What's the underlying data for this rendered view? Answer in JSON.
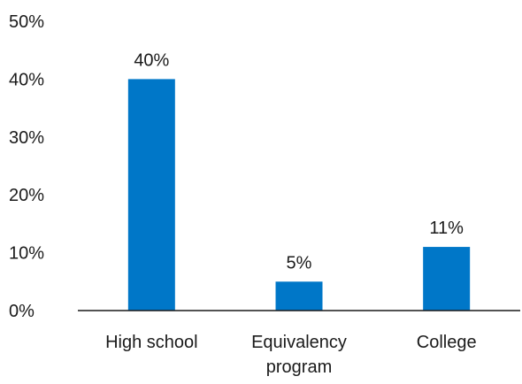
{
  "chart_data": {
    "type": "bar",
    "categories": [
      "High school",
      "Equivalency program",
      "College"
    ],
    "category_lines": [
      [
        "High school"
      ],
      [
        "Equivalency",
        "program"
      ],
      [
        "College"
      ]
    ],
    "values": [
      40,
      5,
      11
    ],
    "data_labels": [
      "40%",
      "5%",
      "11%"
    ],
    "title": "",
    "xlabel": "",
    "ylabel": "",
    "ylim": [
      0,
      50
    ],
    "yticks": [
      0,
      10,
      20,
      30,
      40,
      50
    ],
    "ytick_labels": [
      "0%",
      "10%",
      "20%",
      "30%",
      "40%",
      "50%"
    ],
    "grid": false,
    "legend": "none",
    "bar_color": "#0077c8"
  }
}
